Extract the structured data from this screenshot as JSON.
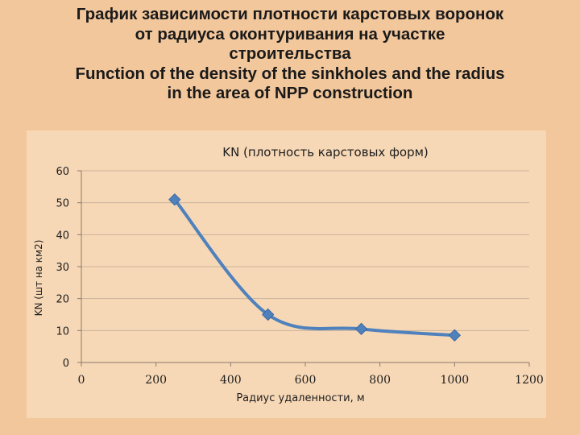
{
  "slide": {
    "title_ru_line1": "График зависимости плотности карстовых воронок",
    "title_ru_line2": "от радиуса оконтуривания на участке",
    "title_ru_line3": "строительства",
    "title_en_line1": "Function of the density of the sinkholes and the radius",
    "title_en_line2": "in the area of NPP construction"
  },
  "chart_data": {
    "type": "line",
    "title": "KN (плотность карстовых форм)",
    "xlabel": "Радиус удаленности, м",
    "ylabel": "KN (шт на км2)",
    "xlim": [
      0,
      1200
    ],
    "ylim": [
      0,
      60
    ],
    "x_ticks": [
      "0",
      "200",
      "400",
      "600",
      "800",
      "1000",
      "1200"
    ],
    "y_ticks": [
      "0",
      "10",
      "20",
      "30",
      "40",
      "50",
      "60"
    ],
    "grid": true,
    "legend": "none",
    "line_style": "smoothed",
    "series": [
      {
        "x": [
          250,
          500,
          750,
          1000
        ],
        "y": [
          51,
          15,
          10.5,
          8.5
        ],
        "color": "#4f81bd"
      }
    ]
  }
}
